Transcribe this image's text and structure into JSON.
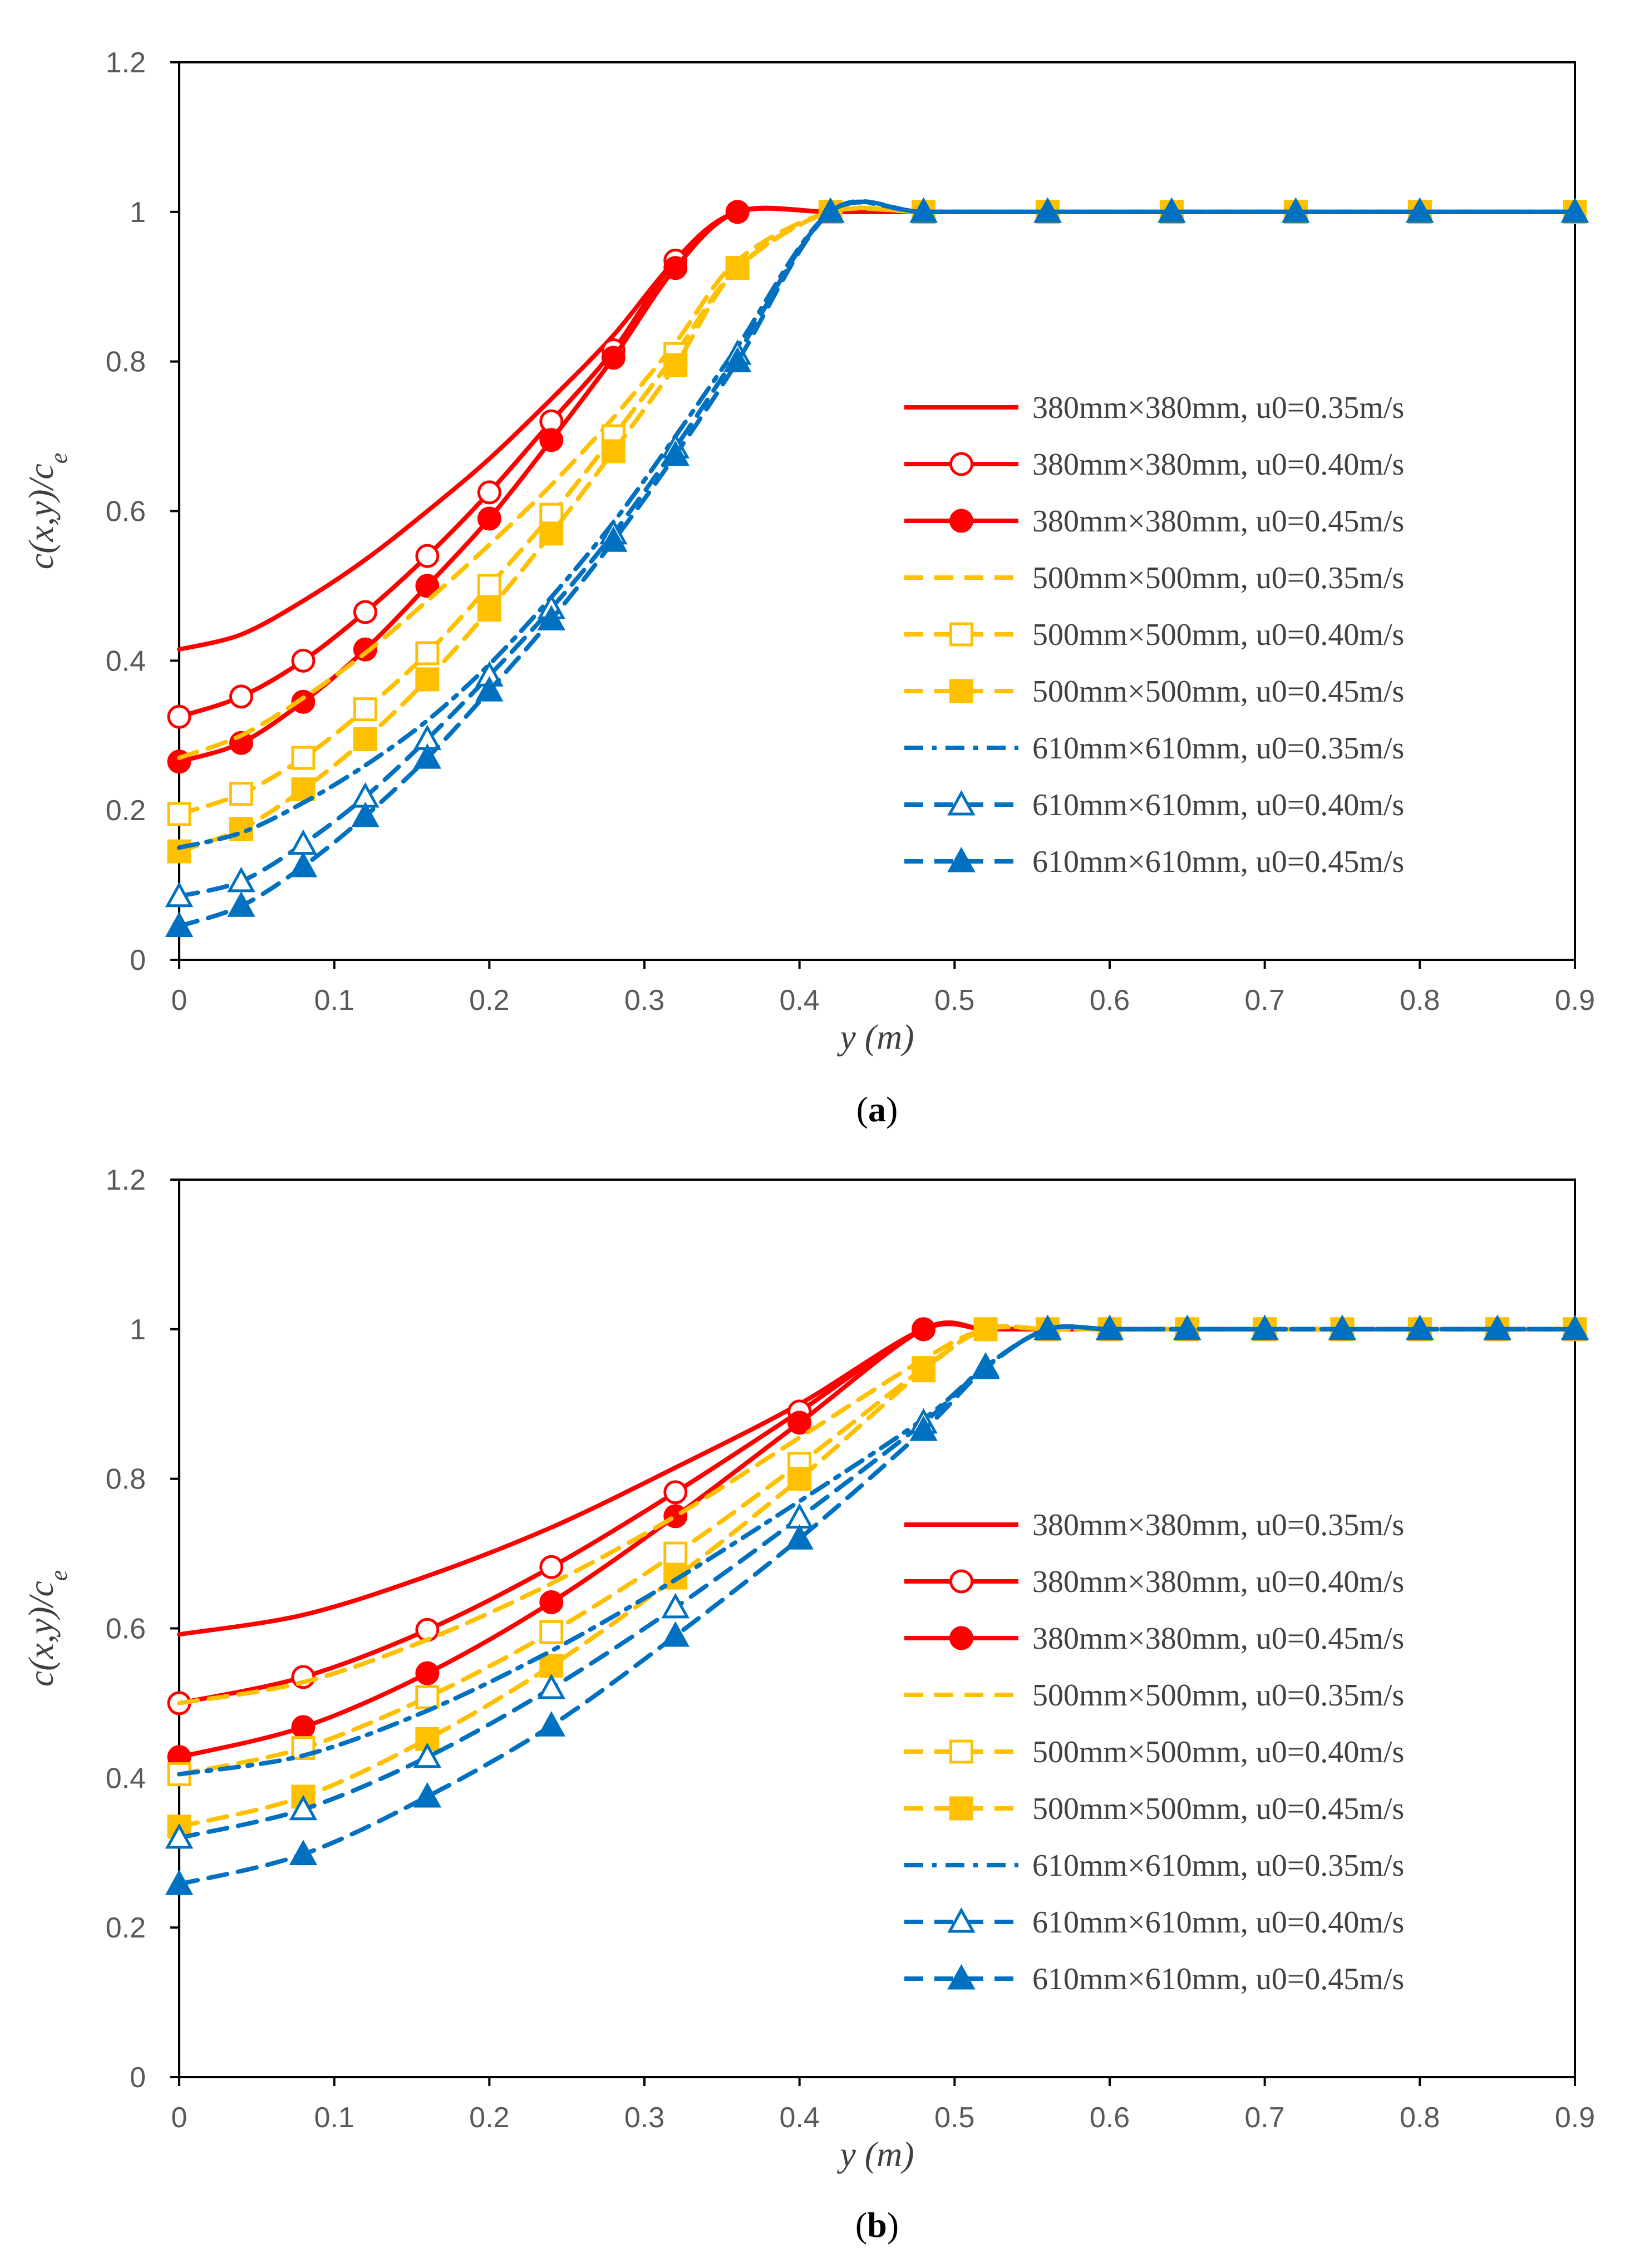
{
  "chart_data": [
    {
      "type": "line",
      "panel_label": "a",
      "xlabel": "y (m)",
      "ylabel": "c(x,y)/c_e",
      "xlim": [
        0,
        0.9
      ],
      "ylim": [
        0,
        1.2
      ],
      "xticks": [
        "0",
        "0.1",
        "0.2",
        "0.3",
        "0.4",
        "0.5",
        "0.6",
        "0.7",
        "0.8",
        "0.9"
      ],
      "yticks": [
        "0",
        "0.2",
        "0.4",
        "0.6",
        "0.8",
        "1",
        "1.2"
      ],
      "legend_position": "right",
      "series": [
        {
          "name": "380mm×380mm, u0=0.35m/s",
          "color": "#ff0000",
          "dash": "solid",
          "marker": "none",
          "x": [
            0,
            0.04,
            0.08,
            0.12,
            0.16,
            0.2,
            0.24,
            0.28,
            0.32,
            0.36,
            0.42,
            0.48,
            0.56,
            0.64,
            0.72,
            0.8,
            0.9
          ],
          "y": [
            0.415,
            0.435,
            0.48,
            0.535,
            0.6,
            0.67,
            0.75,
            0.835,
            0.935,
            1.0,
            1.0,
            1.0,
            1.0,
            1.0,
            1.0,
            1.0,
            1.0
          ]
        },
        {
          "name": "380mm×380mm, u0=0.40m/s",
          "color": "#ff0000",
          "dash": "solid",
          "marker": "circle-open",
          "x": [
            0,
            0.04,
            0.08,
            0.12,
            0.16,
            0.2,
            0.24,
            0.28,
            0.32,
            0.36,
            0.42,
            0.48,
            0.56,
            0.64,
            0.72,
            0.8,
            0.9
          ],
          "y": [
            0.325,
            0.352,
            0.4,
            0.465,
            0.54,
            0.625,
            0.72,
            0.815,
            0.935,
            1.0,
            1.0,
            1.0,
            1.0,
            1.0,
            1.0,
            1.0,
            1.0
          ]
        },
        {
          "name": "380mm×380mm, u0=0.45m/s",
          "color": "#ff0000",
          "dash": "solid",
          "marker": "circle-filled",
          "x": [
            0,
            0.04,
            0.08,
            0.12,
            0.16,
            0.2,
            0.24,
            0.28,
            0.32,
            0.36,
            0.42,
            0.48,
            0.56,
            0.64,
            0.72,
            0.8,
            0.9
          ],
          "y": [
            0.265,
            0.29,
            0.345,
            0.415,
            0.5,
            0.59,
            0.695,
            0.805,
            0.925,
            1.0,
            1.0,
            1.0,
            1.0,
            1.0,
            1.0,
            1.0,
            1.0
          ]
        },
        {
          "name": "500mm×500mm, u0=0.35m/s",
          "color": "#ffc000",
          "dash": "dash",
          "marker": "none",
          "x": [
            0,
            0.04,
            0.08,
            0.12,
            0.16,
            0.2,
            0.24,
            0.28,
            0.32,
            0.36,
            0.42,
            0.48,
            0.56,
            0.64,
            0.72,
            0.8,
            0.9
          ],
          "y": [
            0.27,
            0.3,
            0.35,
            0.41,
            0.48,
            0.555,
            0.635,
            0.725,
            0.825,
            0.935,
            1.0,
            1.0,
            1.0,
            1.0,
            1.0,
            1.0,
            1.0
          ]
        },
        {
          "name": "500mm×500mm, u0=0.40m/s",
          "color": "#ffc000",
          "dash": "dash",
          "marker": "square-open",
          "x": [
            0,
            0.04,
            0.08,
            0.12,
            0.16,
            0.2,
            0.24,
            0.28,
            0.32,
            0.36,
            0.42,
            0.48,
            0.56,
            0.64,
            0.72,
            0.8,
            0.9
          ],
          "y": [
            0.195,
            0.222,
            0.27,
            0.335,
            0.41,
            0.5,
            0.595,
            0.7,
            0.81,
            0.925,
            1.0,
            1.0,
            1.0,
            1.0,
            1.0,
            1.0,
            1.0
          ]
        },
        {
          "name": "500mm×500mm, u0=0.45m/s",
          "color": "#ffc000",
          "dash": "dash",
          "marker": "square-filled",
          "x": [
            0,
            0.04,
            0.08,
            0.12,
            0.16,
            0.2,
            0.24,
            0.28,
            0.32,
            0.36,
            0.42,
            0.48,
            0.56,
            0.64,
            0.72,
            0.8,
            0.9
          ],
          "y": [
            0.145,
            0.175,
            0.228,
            0.295,
            0.375,
            0.468,
            0.57,
            0.68,
            0.795,
            0.925,
            1.0,
            1.0,
            1.0,
            1.0,
            1.0,
            1.0,
            1.0
          ]
        },
        {
          "name": "610mm×610mm, u0=0.35m/s",
          "color": "#0070c0",
          "dash": "dashdot",
          "marker": "none",
          "x": [
            0,
            0.04,
            0.08,
            0.12,
            0.16,
            0.2,
            0.24,
            0.28,
            0.32,
            0.36,
            0.42,
            0.48,
            0.56,
            0.64,
            0.72,
            0.8,
            0.9
          ],
          "y": [
            0.15,
            0.17,
            0.21,
            0.26,
            0.32,
            0.395,
            0.485,
            0.585,
            0.7,
            0.82,
            1.0,
            1.0,
            1.0,
            1.0,
            1.0,
            1.0,
            1.0
          ]
        },
        {
          "name": "610mm×610mm, u0=0.40m/s",
          "color": "#0070c0",
          "dash": "dash",
          "marker": "triangle-open",
          "x": [
            0,
            0.04,
            0.08,
            0.12,
            0.16,
            0.2,
            0.24,
            0.28,
            0.32,
            0.36,
            0.42,
            0.48,
            0.56,
            0.64,
            0.72,
            0.8,
            0.9
          ],
          "y": [
            0.085,
            0.105,
            0.155,
            0.218,
            0.295,
            0.38,
            0.47,
            0.57,
            0.685,
            0.81,
            1.0,
            1.0,
            1.0,
            1.0,
            1.0,
            1.0,
            1.0
          ]
        },
        {
          "name": "610mm×610mm, u0=0.45m/s",
          "color": "#0070c0",
          "dash": "dash",
          "marker": "triangle-filled",
          "x": [
            0,
            0.04,
            0.08,
            0.12,
            0.16,
            0.2,
            0.24,
            0.28,
            0.32,
            0.36,
            0.42,
            0.48,
            0.56,
            0.64,
            0.72,
            0.8,
            0.9
          ],
          "y": [
            0.045,
            0.072,
            0.125,
            0.192,
            0.27,
            0.36,
            0.455,
            0.56,
            0.675,
            0.8,
            1.0,
            1.0,
            1.0,
            1.0,
            1.0,
            1.0,
            1.0
          ]
        }
      ]
    },
    {
      "type": "line",
      "panel_label": "b",
      "xlabel": "y (m)",
      "ylabel": "c(x,y)/c_e",
      "xlim": [
        0,
        0.9
      ],
      "ylim": [
        0,
        1.2
      ],
      "xticks": [
        "0",
        "0.1",
        "0.2",
        "0.3",
        "0.4",
        "0.5",
        "0.6",
        "0.7",
        "0.8",
        "0.9"
      ],
      "yticks": [
        "0",
        "0.2",
        "0.4",
        "0.6",
        "0.8",
        "1",
        "1.2"
      ],
      "legend_position": "right",
      "series": [
        {
          "name": "380mm×380mm, u0=0.35m/s",
          "color": "#ff0000",
          "dash": "solid",
          "marker": "none",
          "x": [
            0,
            0.08,
            0.16,
            0.24,
            0.32,
            0.4,
            0.48,
            0.52,
            0.56,
            0.6,
            0.65,
            0.7,
            0.75,
            0.8,
            0.85,
            0.9
          ],
          "y": [
            0.592,
            0.618,
            0.67,
            0.735,
            0.815,
            0.9,
            1.0,
            1.0,
            1.0,
            1.0,
            1.0,
            1.0,
            1.0,
            1.0,
            1.0,
            1.0
          ]
        },
        {
          "name": "380mm×380mm, u0=0.40m/s",
          "color": "#ff0000",
          "dash": "solid",
          "marker": "circle-open",
          "x": [
            0,
            0.08,
            0.16,
            0.24,
            0.32,
            0.4,
            0.48,
            0.52,
            0.56,
            0.6,
            0.65,
            0.7,
            0.75,
            0.8,
            0.85,
            0.9
          ],
          "y": [
            0.5,
            0.535,
            0.598,
            0.682,
            0.782,
            0.89,
            1.0,
            1.0,
            1.0,
            1.0,
            1.0,
            1.0,
            1.0,
            1.0,
            1.0,
            1.0
          ]
        },
        {
          "name": "380mm×380mm, u0=0.45m/s",
          "color": "#ff0000",
          "dash": "solid",
          "marker": "circle-filled",
          "x": [
            0,
            0.08,
            0.16,
            0.24,
            0.32,
            0.4,
            0.48,
            0.52,
            0.56,
            0.6,
            0.65,
            0.7,
            0.75,
            0.8,
            0.85,
            0.9
          ],
          "y": [
            0.428,
            0.468,
            0.54,
            0.635,
            0.75,
            0.875,
            1.0,
            1.0,
            1.0,
            1.0,
            1.0,
            1.0,
            1.0,
            1.0,
            1.0,
            1.0
          ]
        },
        {
          "name": "500mm×500mm, u0=0.35m/s",
          "color": "#ffc000",
          "dash": "dash",
          "marker": "none",
          "x": [
            0,
            0.08,
            0.16,
            0.24,
            0.32,
            0.4,
            0.48,
            0.52,
            0.56,
            0.6,
            0.65,
            0.7,
            0.75,
            0.8,
            0.85,
            0.9
          ],
          "y": [
            0.5,
            0.528,
            0.585,
            0.66,
            0.75,
            0.855,
            0.96,
            1.0,
            1.0,
            1.0,
            1.0,
            1.0,
            1.0,
            1.0,
            1.0,
            1.0
          ]
        },
        {
          "name": "500mm×500mm, u0=0.40m/s",
          "color": "#ffc000",
          "dash": "dash",
          "marker": "square-open",
          "x": [
            0,
            0.08,
            0.16,
            0.24,
            0.32,
            0.4,
            0.48,
            0.52,
            0.56,
            0.6,
            0.65,
            0.7,
            0.75,
            0.8,
            0.85,
            0.9
          ],
          "y": [
            0.405,
            0.44,
            0.508,
            0.595,
            0.7,
            0.82,
            0.948,
            1.0,
            1.0,
            1.0,
            1.0,
            1.0,
            1.0,
            1.0,
            1.0,
            1.0
          ]
        },
        {
          "name": "500mm×500mm, u0=0.45m/s",
          "color": "#ffc000",
          "dash": "dash",
          "marker": "square-filled",
          "x": [
            0,
            0.08,
            0.16,
            0.24,
            0.32,
            0.4,
            0.48,
            0.52,
            0.56,
            0.6,
            0.65,
            0.7,
            0.75,
            0.8,
            0.85,
            0.9
          ],
          "y": [
            0.335,
            0.375,
            0.452,
            0.55,
            0.668,
            0.8,
            0.945,
            1.0,
            1.0,
            1.0,
            1.0,
            1.0,
            1.0,
            1.0,
            1.0,
            1.0
          ]
        },
        {
          "name": "610mm×610mm, u0=0.35m/s",
          "color": "#0070c0",
          "dash": "dashdot",
          "marker": "none",
          "x": [
            0,
            0.08,
            0.16,
            0.24,
            0.32,
            0.4,
            0.48,
            0.52,
            0.56,
            0.6,
            0.65,
            0.7,
            0.75,
            0.8,
            0.85,
            0.9
          ],
          "y": [
            0.405,
            0.43,
            0.49,
            0.57,
            0.665,
            0.77,
            0.88,
            0.95,
            1.0,
            1.0,
            1.0,
            1.0,
            1.0,
            1.0,
            1.0,
            1.0
          ]
        },
        {
          "name": "610mm×610mm, u0=0.40m/s",
          "color": "#0070c0",
          "dash": "dash",
          "marker": "triangle-open",
          "x": [
            0,
            0.08,
            0.16,
            0.24,
            0.32,
            0.4,
            0.48,
            0.52,
            0.56,
            0.6,
            0.65,
            0.7,
            0.75,
            0.8,
            0.85,
            0.9
          ],
          "y": [
            0.32,
            0.358,
            0.428,
            0.52,
            0.628,
            0.748,
            0.875,
            0.95,
            1.0,
            1.0,
            1.0,
            1.0,
            1.0,
            1.0,
            1.0,
            1.0
          ]
        },
        {
          "name": "610mm×610mm, u0=0.45m/s",
          "color": "#0070c0",
          "dash": "dash",
          "marker": "triangle-filled",
          "x": [
            0,
            0.08,
            0.16,
            0.24,
            0.32,
            0.4,
            0.48,
            0.52,
            0.56,
            0.6,
            0.65,
            0.7,
            0.75,
            0.8,
            0.85,
            0.9
          ],
          "y": [
            0.258,
            0.298,
            0.375,
            0.47,
            0.59,
            0.72,
            0.865,
            0.948,
            1.0,
            1.0,
            1.0,
            1.0,
            1.0,
            1.0,
            1.0,
            1.0
          ]
        }
      ]
    }
  ]
}
